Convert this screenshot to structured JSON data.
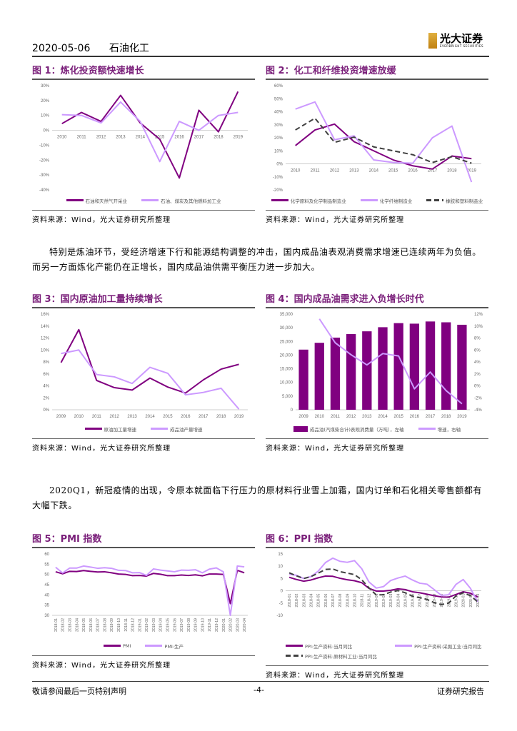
{
  "header": {
    "date": "2020-05-06",
    "sector": "石油化工",
    "logo_cn": "光大证券",
    "logo_en": "EVERBRIGHT SECURITIES"
  },
  "colors": {
    "dark": "#800080",
    "light": "#cc99ff",
    "dash": "#404040",
    "title": "#7a1f7a"
  },
  "source_text": "资料来源：Wind，光大证券研究所整理",
  "paragraphs": [
    "特别是炼油环节，受经济增速下行和能源结构调整的冲击，国内成品油表观消费需求增速已连续两年为负值。而另一方面炼化产能仍在正增长，国内成品油供需平衡压力进一步加大。",
    "2020Q1，新冠疫情的出现，令原本就面临下行压力的原材料行业雪上加霜，国内订单和石化相关零售额都有大幅下跌。"
  ],
  "footer": {
    "left": "敬请参阅最后一页特别声明",
    "center": "-4-",
    "right": "证券研究报告"
  },
  "chart_data": [
    {
      "title": "图 1：炼化投资额快速增长",
      "type": "line",
      "categories": [
        "2010",
        "2011",
        "2012",
        "2013",
        "2014",
        "2015",
        "2016",
        "2017",
        "2018",
        "2019"
      ],
      "ylim": [
        -40,
        30
      ],
      "yticks": [
        -40,
        -30,
        -20,
        -10,
        0,
        10,
        20,
        30
      ],
      "yformat": "percent",
      "xaxis_at_zero": true,
      "series": [
        {
          "name": "石油和天然气开采业",
          "color": "#800080",
          "values": [
            4.5,
            12,
            6,
            23.5,
            5,
            -6,
            -32,
            13.5,
            -1,
            26
          ]
        },
        {
          "name": "石油、煤炭及其他燃料加工业",
          "color": "#cc99ff",
          "values": [
            10.5,
            10,
            5,
            19,
            6,
            -21,
            6,
            0,
            10,
            12
          ]
        }
      ]
    },
    {
      "title": "图 2：化工和纤维投资增速放缓",
      "type": "line",
      "categories": [
        "2010",
        "2011",
        "2012",
        "2013",
        "2014",
        "2015",
        "2016",
        "2017",
        "2018",
        "2019"
      ],
      "ylim": [
        -20,
        60
      ],
      "yticks": [
        -20,
        -10,
        0,
        10,
        20,
        30,
        40,
        50,
        60
      ],
      "yformat": "percent",
      "xaxis_at_zero": true,
      "series": [
        {
          "name": "化学原料及化学制品制造业",
          "color": "#800080",
          "values": [
            14,
            26,
            30.5,
            17,
            10,
            3,
            -1.5,
            -4,
            6,
            4
          ]
        },
        {
          "name": "化学纤维制造业",
          "color": "#cc99ff",
          "values": [
            42,
            47.5,
            18.5,
            21.5,
            3,
            1,
            0.5,
            20,
            29,
            -14
          ]
        },
        {
          "name": "橡胶和塑料制品业",
          "color": "#404040",
          "dashed": true,
          "values": [
            26,
            35,
            16.5,
            20.5,
            13,
            10,
            7,
            1,
            5.5,
            0.5
          ]
        }
      ]
    },
    {
      "title": "图 3：国内原油加工量持续增长",
      "type": "line",
      "categories": [
        "2009",
        "2010",
        "2011",
        "2012",
        "2013",
        "2014",
        "2015",
        "2016",
        "2017",
        "2018",
        "2019"
      ],
      "ylim": [
        0,
        16
      ],
      "yticks": [
        0,
        2,
        4,
        6,
        8,
        10,
        12,
        14,
        16
      ],
      "yformat": "percent",
      "series": [
        {
          "name": "原油加工量增速",
          "color": "#800080",
          "values": [
            7.9,
            13.4,
            4.9,
            3.7,
            3.3,
            5.3,
            3.8,
            2.8,
            5,
            6.8,
            7.6
          ]
        },
        {
          "name": "成品油产量增速",
          "color": "#cc99ff",
          "values": [
            9.4,
            10,
            5.9,
            5.5,
            4.4,
            7.1,
            6.1,
            2.5,
            2.9,
            3.6,
            0.1
          ]
        }
      ]
    },
    {
      "title": "图 4：国内成品油需求进入负增长时代",
      "type": "bar+line",
      "categories": [
        "2009",
        "2010",
        "2011",
        "2012",
        "2013",
        "2014",
        "2015",
        "2016",
        "2017",
        "2018",
        "2019"
      ],
      "ylim": [
        0,
        35000
      ],
      "yticks": [
        0,
        5000,
        10000,
        15000,
        20000,
        25000,
        30000,
        35000
      ],
      "y2lim": [
        -4,
        12
      ],
      "y2ticks": [
        -4,
        -2,
        0,
        2,
        4,
        6,
        8,
        10,
        12
      ],
      "series": [
        {
          "name": "成品油(汽煤柴合计)表观消费量（万吨），左轴",
          "type": "bar",
          "color": "#800080",
          "values": [
            22000,
            24500,
            26400,
            27700,
            28700,
            30200,
            31700,
            31500,
            32300,
            32000,
            31100
          ]
        },
        {
          "name": "增速，右轴",
          "type": "line",
          "axis": "right",
          "color": "#cc99ff",
          "values": [
            null,
            11.2,
            7.2,
            5.2,
            3.5,
            5.4,
            5,
            -0.5,
            2.3,
            -0.8,
            -3
          ]
        }
      ]
    },
    {
      "title": "图 5：PMI 指数",
      "type": "line",
      "categories": [
        "2018-01",
        "2018-02",
        "2018-03",
        "2018-04",
        "2018-05",
        "2018-06",
        "2018-07",
        "2018-08",
        "2018-09",
        "2018-10",
        "2018-11",
        "2018-12",
        "2019-01",
        "2019-02",
        "2019-03",
        "2019-04",
        "2019-05",
        "2019-06",
        "2019-07",
        "2019-08",
        "2019-09",
        "2019-10",
        "2019-11",
        "2019-12",
        "2020-01",
        "2020-02",
        "2020-03",
        "2020-04"
      ],
      "ylim": [
        30,
        60
      ],
      "yticks": [
        30,
        35,
        40,
        45,
        50,
        55,
        60
      ],
      "rotate_labels": true,
      "series": [
        {
          "name": "PMI",
          "color": "#800080",
          "values": [
            51.3,
            50.3,
            51.5,
            51.4,
            51.9,
            51.5,
            51.2,
            51.3,
            50.8,
            50.2,
            50,
            49.4,
            49.5,
            49.2,
            50.5,
            50.1,
            49.4,
            49.4,
            49.7,
            49.5,
            49.8,
            49.3,
            50.2,
            50.2,
            50,
            35.7,
            52,
            50.8
          ]
        },
        {
          "name": "PMI:生产",
          "color": "#cc99ff",
          "values": [
            53.5,
            50.7,
            53.1,
            53.1,
            54.1,
            53.6,
            53,
            53.3,
            53,
            52,
            51.9,
            50.8,
            50.9,
            49.5,
            52.7,
            52.1,
            51.7,
            51.3,
            52.1,
            52,
            52.3,
            50.8,
            52.6,
            53.2,
            51.3,
            27.8,
            54.1,
            53.7
          ]
        }
      ]
    },
    {
      "title": "图 6：PPI 指数",
      "type": "line",
      "categories": [
        "2018-01",
        "2018-02",
        "2018-03",
        "2018-04",
        "2018-05",
        "2018-06",
        "2018-07",
        "2018-08",
        "2018-09",
        "2018-10",
        "2018-11",
        "2018-12",
        "2019-01",
        "2019-02",
        "2019-03",
        "2019-04",
        "2019-05",
        "2019-06",
        "2019-07",
        "2019-08",
        "2019-09",
        "2019-10",
        "2019-11",
        "2019-12",
        "2020-01",
        "2020-02",
        "2020-03"
      ],
      "ylim": [
        -10,
        15
      ],
      "yticks": [
        -10,
        -5,
        0,
        5,
        10,
        15
      ],
      "rotate_labels": true,
      "xaxis_at_zero": true,
      "series": [
        {
          "name": "PPI:生产资料:当月同比",
          "color": "#800080",
          "values": [
            5.5,
            4.6,
            3.9,
            4.4,
            5.3,
            6,
            5.9,
            5.1,
            4.5,
            4.1,
            3.3,
            1,
            -0.1,
            -0.1,
            0.2,
            0.8,
            0.5,
            -0.4,
            -0.8,
            -1.4,
            -2,
            -2.5,
            -2.6,
            -1.5,
            -0.4,
            -1,
            -2.5
          ]
        },
        {
          "name": "PPI:生产资料:采掘工业:当月同比",
          "color": "#cc99ff",
          "values": [
            6.7,
            6.3,
            5,
            5.8,
            8,
            11.5,
            13.3,
            12,
            11.6,
            12.3,
            9,
            3.6,
            1.1,
            1.7,
            4.2,
            5.2,
            6,
            4.4,
            3.1,
            2.7,
            0.5,
            -1.9,
            -1.6,
            2.6,
            4.6,
            1,
            -4.5
          ]
        },
        {
          "name": "PPI:生产资料:原材料工业:当月同比",
          "color": "#404040",
          "dashed": true,
          "values": [
            7.3,
            6.1,
            5,
            5.8,
            7.2,
            8.7,
            8.9,
            7.8,
            7.2,
            6.6,
            4.5,
            1.2,
            -1.7,
            -1.6,
            -0.5,
            0.1,
            -0.8,
            -2.2,
            -2.8,
            -3.5,
            -4.8,
            -5.6,
            -5,
            -2.1,
            -0.8,
            -2,
            -4.5
          ]
        }
      ]
    }
  ]
}
